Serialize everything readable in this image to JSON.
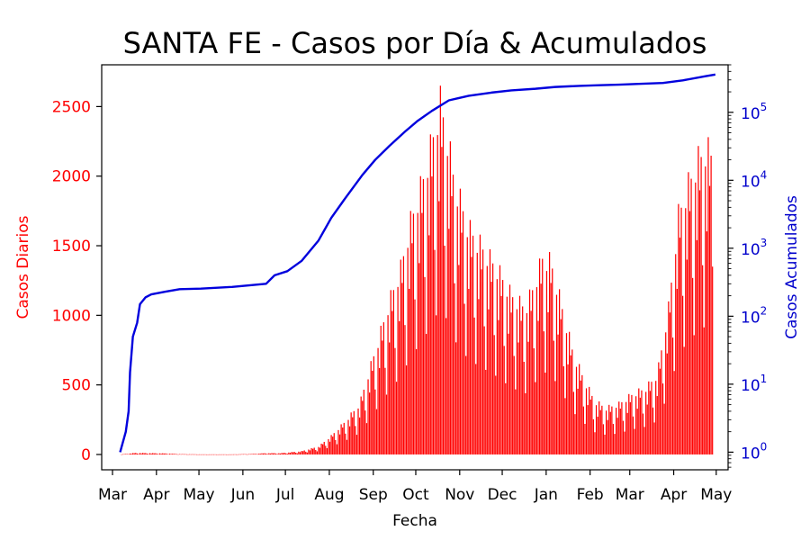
{
  "chart_data": {
    "type": "bar+line",
    "title": "SANTA FE - Casos por Día & Acumulados",
    "xlabel": "Fecha",
    "ylabel_left": "Casos Diarios",
    "ylabel_right": "Casos Acumulados",
    "x_ticks": [
      "Mar",
      "Apr",
      "May",
      "Jun",
      "Jul",
      "Aug",
      "Sep",
      "Oct",
      "Nov",
      "Dec",
      "Jan",
      "Feb",
      "Mar",
      "Apr",
      "May"
    ],
    "y_left": {
      "ticks": [
        0,
        500,
        1000,
        1500,
        2000,
        2500
      ],
      "lim": [
        -110,
        2800
      ]
    },
    "y_right": {
      "scale": "log",
      "ticks": [
        1,
        10,
        100,
        1000,
        10000,
        100000
      ],
      "tick_labels": [
        "10^0",
        "10^1",
        "10^2",
        "10^3",
        "10^4",
        "10^5"
      ],
      "lim": [
        0.55,
        500000
      ]
    },
    "colors": {
      "daily": "#ff0000",
      "cumulative": "#0000dd",
      "left_axis": "#ff0000",
      "right_axis": "#0000cc"
    },
    "daily_series": {
      "name": "Casos Diarios",
      "start_date": "2020-03-14",
      "anchors": [
        [
          "2020-03-14",
          0
        ],
        [
          "2020-03-25",
          12
        ],
        [
          "2020-04-05",
          10
        ],
        [
          "2020-04-15",
          8
        ],
        [
          "2020-04-25",
          3
        ],
        [
          "2020-05-10",
          1
        ],
        [
          "2020-06-01",
          1
        ],
        [
          "2020-06-15",
          4
        ],
        [
          "2020-06-25",
          10
        ],
        [
          "2020-07-05",
          10
        ],
        [
          "2020-07-20",
          25
        ],
        [
          "2020-08-01",
          60
        ],
        [
          "2020-08-10",
          140
        ],
        [
          "2020-08-20",
          250
        ],
        [
          "2020-08-30",
          380
        ],
        [
          "2020-09-05",
          600
        ],
        [
          "2020-09-12",
          850
        ],
        [
          "2020-09-20",
          1150
        ],
        [
          "2020-09-28",
          1400
        ],
        [
          "2020-10-05",
          1750
        ],
        [
          "2020-10-12",
          2000
        ],
        [
          "2020-10-18",
          2250
        ],
        [
          "2020-10-23",
          2500
        ],
        [
          "2020-10-26",
          2650
        ],
        [
          "2020-10-30",
          2450
        ],
        [
          "2020-11-05",
          2050
        ],
        [
          "2020-11-15",
          1700
        ],
        [
          "2020-11-25",
          1550
        ],
        [
          "2020-12-05",
          1400
        ],
        [
          "2020-12-15",
          1200
        ],
        [
          "2020-12-25",
          1100
        ],
        [
          "2021-01-01",
          1300
        ],
        [
          "2021-01-06",
          1480
        ],
        [
          "2021-01-12",
          1450
        ],
        [
          "2021-01-20",
          1100
        ],
        [
          "2021-01-28",
          750
        ],
        [
          "2021-02-05",
          550
        ],
        [
          "2021-02-12",
          400
        ],
        [
          "2021-02-20",
          350
        ],
        [
          "2021-03-01",
          380
        ],
        [
          "2021-03-10",
          450
        ],
        [
          "2021-03-20",
          500
        ],
        [
          "2021-03-28",
          600
        ],
        [
          "2021-04-05",
          1100
        ],
        [
          "2021-04-12",
          1800
        ],
        [
          "2021-04-18",
          2000
        ],
        [
          "2021-04-25",
          2200
        ],
        [
          "2021-05-01",
          2300
        ],
        [
          "2021-05-06",
          2250
        ]
      ]
    },
    "cumulative_series": {
      "name": "Casos Acumulados",
      "points": [
        [
          "2020-03-14",
          1
        ],
        [
          "2020-03-18",
          2
        ],
        [
          "2020-03-20",
          4
        ],
        [
          "2020-03-21",
          15
        ],
        [
          "2020-03-23",
          50
        ],
        [
          "2020-03-26",
          80
        ],
        [
          "2020-03-28",
          150
        ],
        [
          "2020-04-01",
          190
        ],
        [
          "2020-04-05",
          210
        ],
        [
          "2020-04-15",
          230
        ],
        [
          "2020-04-25",
          250
        ],
        [
          "2020-05-10",
          255
        ],
        [
          "2020-06-01",
          270
        ],
        [
          "2020-06-25",
          300
        ],
        [
          "2020-07-01",
          400
        ],
        [
          "2020-07-10",
          460
        ],
        [
          "2020-07-20",
          650
        ],
        [
          "2020-08-01",
          1300
        ],
        [
          "2020-08-10",
          2800
        ],
        [
          "2020-08-20",
          5500
        ],
        [
          "2020-09-01",
          12000
        ],
        [
          "2020-09-10",
          20000
        ],
        [
          "2020-09-20",
          32000
        ],
        [
          "2020-10-01",
          52000
        ],
        [
          "2020-10-10",
          75000
        ],
        [
          "2020-10-20",
          105000
        ],
        [
          "2020-11-01",
          150000
        ],
        [
          "2020-11-15",
          175000
        ],
        [
          "2020-12-01",
          195000
        ],
        [
          "2020-12-15",
          210000
        ],
        [
          "2021-01-01",
          222000
        ],
        [
          "2021-01-15",
          236000
        ],
        [
          "2021-02-01",
          245000
        ],
        [
          "2021-02-15",
          250000
        ],
        [
          "2021-03-01",
          255000
        ],
        [
          "2021-03-15",
          262000
        ],
        [
          "2021-04-01",
          270000
        ],
        [
          "2021-04-15",
          295000
        ],
        [
          "2021-05-01",
          340000
        ],
        [
          "2021-05-08",
          360000
        ]
      ]
    }
  }
}
